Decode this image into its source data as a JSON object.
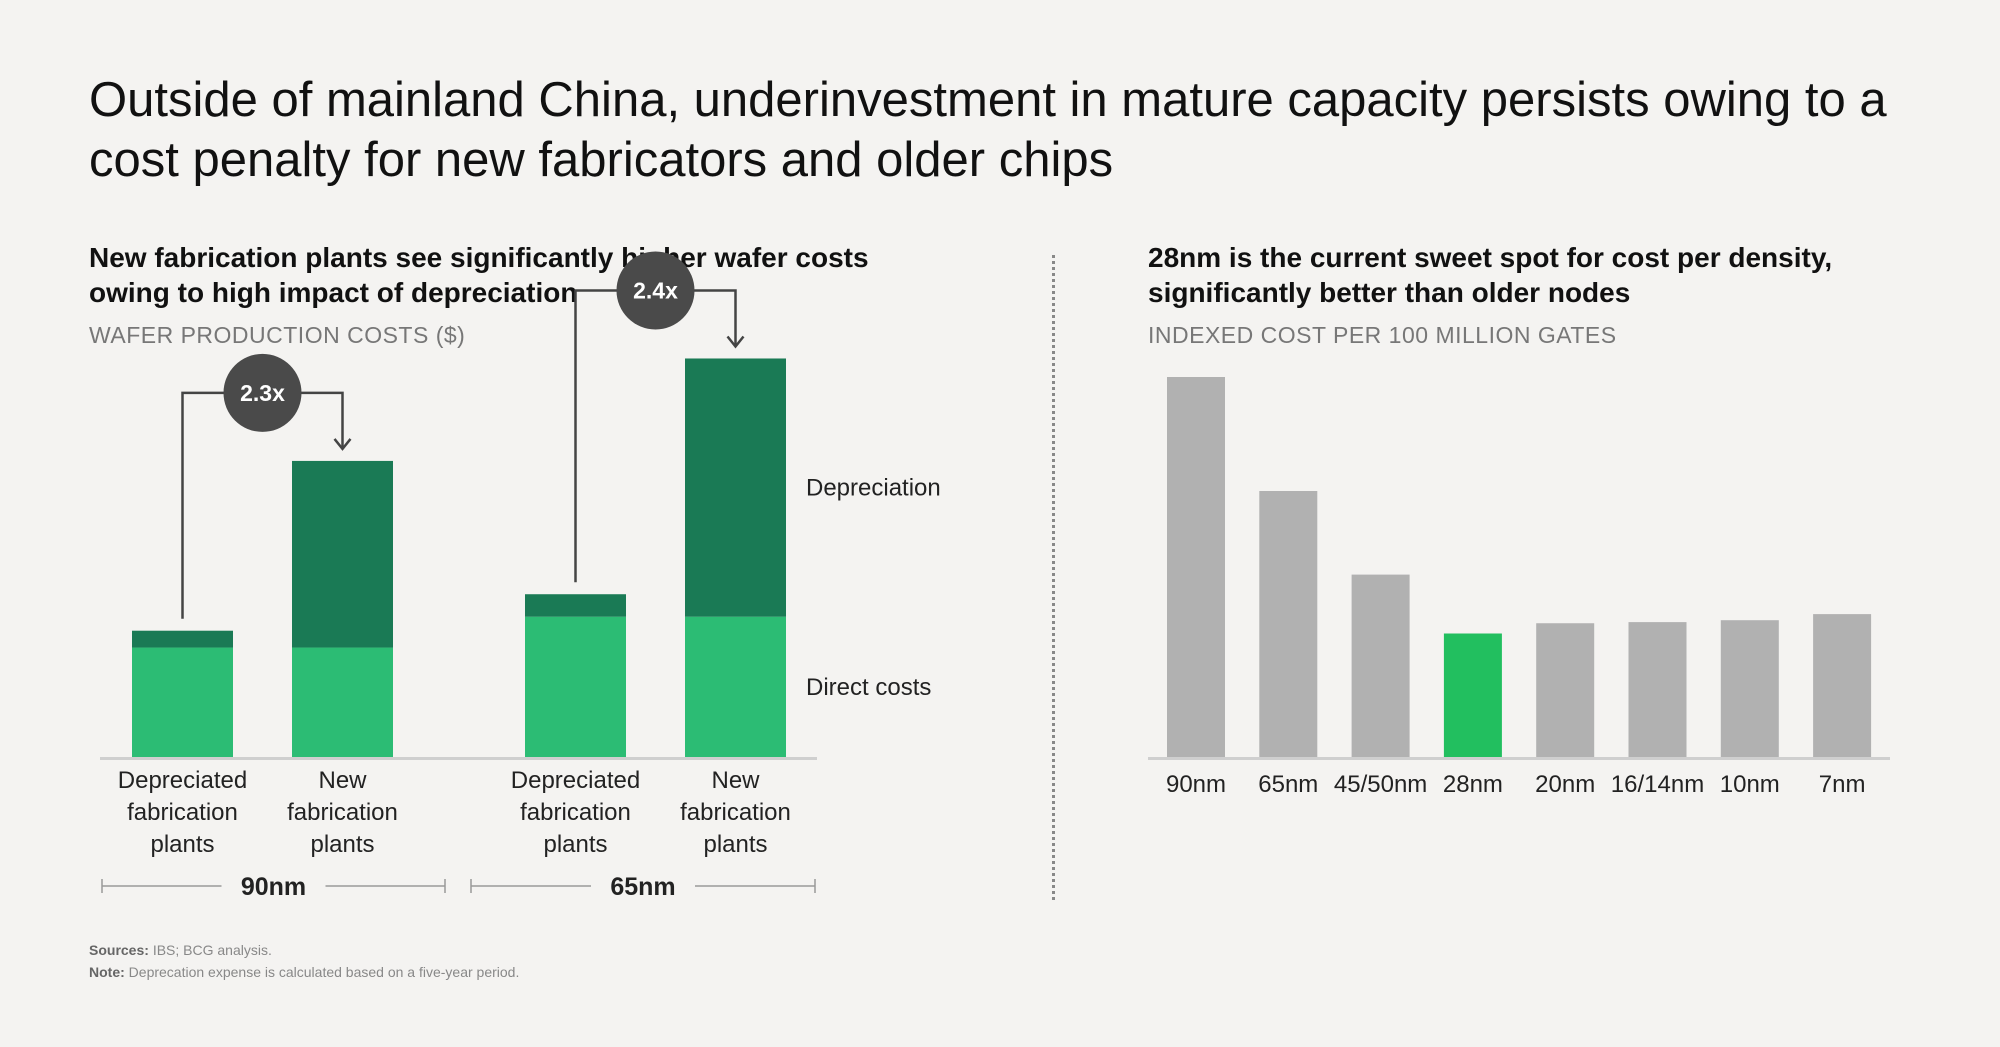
{
  "title": "Outside of mainland China, underinvestment in mature capacity persists owing to a cost penalty for new fabricators and older chips",
  "left_panel": {
    "title": "New fabrication plants see significantly higher wafer costs owing to high impact of depreciation",
    "subtitle": "WAFER PRODUCTION COSTS ($)"
  },
  "right_panel": {
    "title": "28nm is the current sweet spot for cost per density, significantly better than older nodes",
    "subtitle": "INDEXED COST PER 100 MILLION GATES"
  },
  "footnotes": {
    "sources_label": "Sources:",
    "sources_text": "IBS; BCG analysis.",
    "note_label": "Note:",
    "note_text": "Deprecation expense is calculated based on a five-year period."
  },
  "colors": {
    "direct": "#2cbc74",
    "depreciation": "#1a7a55",
    "gray_bar": "#b1b1b1",
    "highlight_bar": "#22bf5f",
    "multiplier_circle": "#4a4a4a"
  },
  "chart_data": [
    {
      "type": "bar",
      "stacked": true,
      "title": "New fabrication plants see significantly higher wafer costs owing to high impact of depreciation",
      "ylabel": "WAFER PRODUCTION COSTS ($)",
      "ylim": [
        0,
        3.1
      ],
      "categories": [
        {
          "label": "Depreciated fabrication plants",
          "group": "90nm"
        },
        {
          "label": "New fabrication plants",
          "group": "90nm"
        },
        {
          "label": "Depreciated fabrication plants",
          "group": "65nm"
        },
        {
          "label": "New fabrication plants",
          "group": "65nm"
        }
      ],
      "category_lines": [
        [
          "Depreciated",
          "fabrication",
          "plants"
        ],
        [
          "New",
          "fabrication",
          "plants"
        ],
        [
          "Depreciated",
          "fabrication",
          "plants"
        ],
        [
          "New",
          "fabrication",
          "plants"
        ]
      ],
      "groups": [
        "90nm",
        "65nm"
      ],
      "series": [
        {
          "name": "Direct costs",
          "values": [
            0.78,
            0.78,
            1.0,
            1.0
          ]
        },
        {
          "name": "Depreciation",
          "values": [
            0.12,
            1.33,
            0.16,
            1.84
          ]
        }
      ],
      "multipliers": [
        {
          "label": "2.3x",
          "from": 0,
          "to": 1
        },
        {
          "label": "2.4x",
          "from": 2,
          "to": 3
        }
      ],
      "legend_placement": "right"
    },
    {
      "type": "bar",
      "title": "28nm is the current sweet spot for cost per density, significantly better than older nodes",
      "ylabel": "INDEXED COST PER 100 MILLION GATES",
      "ylim": [
        0,
        1.0
      ],
      "categories": [
        "90nm",
        "65nm",
        "45/50nm",
        "28nm",
        "20nm",
        "16/14nm",
        "10nm",
        "7nm"
      ],
      "values": [
        1.0,
        0.7,
        0.48,
        0.325,
        0.352,
        0.355,
        0.36,
        0.376
      ],
      "highlight": "28nm"
    }
  ]
}
